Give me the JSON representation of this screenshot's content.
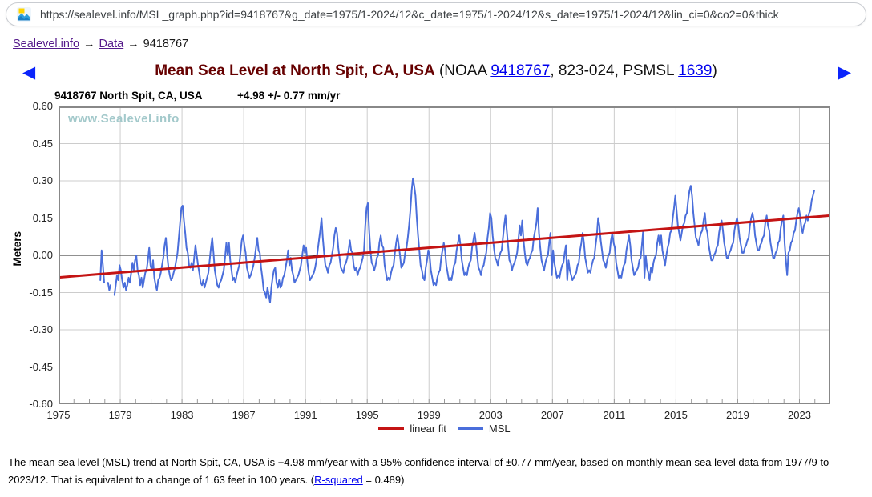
{
  "browser": {
    "url": "https://sealevel.info/MSL_graph.php?id=9418767&g_date=1975/1-2024/12&c_date=1975/1-2024/12&s_date=1975/1-2024/12&lin_ci=0&co2=0&thick",
    "favicon": "landscape-image-icon"
  },
  "breadcrumb": {
    "home": "Sealevel.info",
    "sep1": "→",
    "data": "Data",
    "sep2": "→",
    "station_id": "9418767"
  },
  "header": {
    "prev_arrow": "◀",
    "next_arrow": "▶",
    "title": "Mean Sea Level at North Spit, CA, USA",
    "paren_prefix": " (NOAA ",
    "noaa_link": "9418767",
    "paren_mid": ", 823-024, PSMSL ",
    "psmsl_link": "1639",
    "paren_suffix": ")"
  },
  "chart": {
    "station_label": "9418767 North Spit, CA, USA",
    "trend_label": "+4.98 +/- 0.77 mm/yr",
    "watermark": "www.Sealevel.info",
    "y_axis_label": "Meters"
  },
  "legend": {
    "linear_fit_label": "linear fit",
    "msl_label": "MSL"
  },
  "footer": {
    "text_before_link": "The mean sea level (MSL) trend at North Spit, CA, USA is +4.98 mm/year with a 95% confidence interval of ±0.77 mm/year, based on monthly mean sea level data from 1977/9 to 2023/12. That is equivalent to a change of 1.63 feet in 100 years. (",
    "link_label": "R-squared",
    "text_after_link": " = 0.489)"
  },
  "colors": {
    "msl_line": "#4a6edb",
    "linear_fit_line": "#c41414",
    "title_maroon": "#660000",
    "link_blue": "#0000EE",
    "visited_purple": "#551A8B",
    "grid": "#cccccc",
    "watermark": "#a3c9cb"
  },
  "chart_data": {
    "type": "line",
    "title": "Mean Sea Level at North Spit, CA, USA",
    "xlabel": "",
    "ylabel": "Meters",
    "xlim": [
      1975,
      2025
    ],
    "ylim": [
      -0.6,
      0.6
    ],
    "x_ticks": [
      1975,
      1979,
      1983,
      1987,
      1991,
      1995,
      1999,
      2003,
      2007,
      2011,
      2015,
      2019,
      2023
    ],
    "y_ticks": [
      0.6,
      0.45,
      0.3,
      0.15,
      0,
      -0.15,
      -0.3,
      -0.45,
      -0.6
    ],
    "grid": true,
    "legend_position": "bottom",
    "trend_mm_per_year": 4.98,
    "trend_ci_mm_per_year": 0.77,
    "r_squared": 0.489,
    "data_span": "1977/9 - 2023/12",
    "series": [
      {
        "name": "MSL",
        "kind": "monthly",
        "start_year": 1977,
        "start_month": 9,
        "values": [
          -0.1,
          0.02,
          -0.04,
          -0.11,
          null,
          null,
          -0.11,
          -0.14,
          -0.12,
          null,
          null,
          -0.16,
          -0.12,
          -0.08,
          -0.1,
          -0.04,
          -0.06,
          -0.1,
          -0.13,
          -0.11,
          -0.14,
          -0.12,
          -0.09,
          -0.11,
          -0.07,
          -0.03,
          -0.06,
          -0.02,
          0.0,
          -0.06,
          -0.08,
          -0.12,
          -0.09,
          -0.13,
          -0.1,
          -0.07,
          -0.06,
          -0.02,
          0.03,
          -0.04,
          -0.06,
          -0.02,
          -0.09,
          -0.12,
          -0.14,
          -0.1,
          -0.09,
          -0.07,
          -0.04,
          -0.01,
          0.04,
          0.07,
          0.0,
          -0.05,
          -0.08,
          -0.1,
          -0.09,
          -0.07,
          -0.05,
          -0.02,
          0.01,
          0.07,
          0.13,
          0.19,
          0.2,
          0.14,
          0.09,
          0.03,
          0.01,
          -0.04,
          -0.05,
          -0.03,
          -0.06,
          -0.01,
          0.04,
          0.0,
          -0.04,
          -0.07,
          -0.11,
          -0.12,
          -0.1,
          -0.13,
          -0.11,
          -0.09,
          -0.07,
          -0.02,
          0.03,
          0.07,
          0.01,
          -0.06,
          -0.09,
          -0.12,
          -0.13,
          -0.11,
          -0.1,
          -0.08,
          -0.06,
          -0.01,
          0.05,
          0.0,
          0.05,
          -0.02,
          -0.06,
          -0.1,
          -0.09,
          -0.11,
          -0.08,
          -0.06,
          -0.04,
          0.01,
          0.06,
          0.08,
          0.04,
          0.01,
          -0.05,
          -0.07,
          -0.09,
          -0.08,
          -0.06,
          -0.04,
          -0.01,
          0.03,
          0.07,
          0.02,
          0.01,
          -0.05,
          -0.09,
          -0.14,
          -0.15,
          -0.17,
          -0.13,
          -0.16,
          -0.19,
          -0.13,
          -0.09,
          -0.06,
          -0.05,
          -0.11,
          -0.13,
          -0.1,
          -0.13,
          -0.12,
          -0.09,
          -0.08,
          -0.05,
          -0.02,
          0.02,
          -0.04,
          -0.01,
          -0.06,
          -0.08,
          -0.11,
          -0.1,
          -0.09,
          -0.08,
          -0.06,
          -0.04,
          0.0,
          0.04,
          0.01,
          0.03,
          -0.03,
          -0.07,
          -0.1,
          -0.09,
          -0.08,
          -0.07,
          -0.05,
          -0.02,
          0.02,
          0.06,
          0.1,
          0.15,
          0.07,
          0.01,
          -0.04,
          -0.05,
          -0.07,
          -0.04,
          -0.03,
          0.0,
          0.03,
          0.08,
          0.11,
          0.09,
          0.03,
          -0.01,
          -0.05,
          -0.06,
          -0.07,
          -0.04,
          -0.03,
          -0.01,
          0.02,
          0.06,
          0.02,
          0.01,
          -0.04,
          -0.06,
          -0.05,
          -0.08,
          -0.06,
          -0.05,
          -0.03,
          -0.01,
          0.02,
          0.12,
          0.19,
          0.21,
          0.1,
          0.02,
          -0.03,
          -0.04,
          -0.06,
          -0.04,
          -0.01,
          0.0,
          0.05,
          0.08,
          0.04,
          0.03,
          -0.04,
          -0.07,
          -0.1,
          -0.09,
          -0.1,
          -0.07,
          -0.05,
          -0.04,
          0.01,
          0.05,
          0.08,
          0.04,
          0.0,
          -0.05,
          -0.04,
          -0.03,
          0.01,
          0.03,
          0.07,
          0.12,
          0.18,
          0.26,
          0.31,
          0.28,
          0.24,
          0.15,
          0.08,
          0.02,
          -0.04,
          -0.06,
          -0.09,
          -0.1,
          -0.05,
          -0.02,
          0.02,
          0.0,
          -0.06,
          -0.09,
          -0.12,
          -0.11,
          -0.12,
          -0.09,
          -0.07,
          -0.06,
          -0.01,
          0.02,
          0.05,
          0.02,
          -0.04,
          -0.07,
          -0.1,
          -0.09,
          -0.1,
          -0.07,
          -0.04,
          -0.03,
          0.02,
          0.05,
          0.08,
          0.04,
          -0.02,
          -0.05,
          -0.08,
          -0.07,
          -0.08,
          -0.05,
          -0.03,
          -0.02,
          0.03,
          0.06,
          0.09,
          0.05,
          0.0,
          -0.05,
          -0.06,
          -0.08,
          -0.05,
          -0.04,
          -0.01,
          0.01,
          0.07,
          0.11,
          0.17,
          0.15,
          0.08,
          0.03,
          -0.01,
          -0.02,
          -0.04,
          -0.01,
          0.01,
          0.02,
          0.07,
          0.12,
          0.16,
          0.1,
          0.04,
          -0.02,
          -0.03,
          -0.06,
          -0.04,
          -0.03,
          -0.01,
          0.01,
          0.06,
          0.12,
          0.08,
          0.14,
          0.06,
          0.01,
          -0.03,
          -0.04,
          -0.02,
          -0.01,
          0.01,
          0.02,
          0.07,
          0.1,
          0.13,
          0.19,
          0.09,
          0.03,
          -0.02,
          -0.04,
          -0.06,
          -0.03,
          -0.01,
          0.0,
          0.05,
          0.09,
          -0.08,
          0.02,
          -0.03,
          -0.06,
          -0.09,
          -0.08,
          -0.09,
          -0.06,
          -0.04,
          -0.03,
          0.01,
          0.04,
          -0.1,
          -0.02,
          -0.06,
          -0.08,
          -0.1,
          -0.09,
          -0.08,
          -0.07,
          -0.04,
          -0.03,
          0.02,
          0.05,
          0.09,
          0.05,
          -0.01,
          -0.04,
          -0.07,
          -0.06,
          -0.07,
          -0.04,
          -0.02,
          -0.01,
          0.04,
          0.08,
          0.15,
          0.12,
          0.06,
          0.02,
          -0.02,
          -0.03,
          -0.05,
          -0.02,
          0.0,
          0.01,
          0.06,
          0.09,
          0.05,
          0.03,
          -0.03,
          -0.06,
          -0.09,
          -0.08,
          -0.09,
          -0.06,
          -0.04,
          -0.03,
          0.02,
          0.05,
          0.08,
          0.04,
          -0.02,
          -0.05,
          -0.08,
          -0.07,
          -0.06,
          -0.05,
          -0.02,
          -0.01,
          0.04,
          0.1,
          -0.09,
          0.0,
          -0.05,
          -0.07,
          -0.1,
          -0.05,
          -0.07,
          -0.03,
          -0.01,
          0.0,
          0.05,
          0.08,
          0.04,
          0.08,
          0.02,
          -0.01,
          -0.04,
          0.0,
          0.03,
          0.05,
          0.09,
          0.1,
          0.15,
          0.19,
          0.24,
          0.18,
          0.12,
          0.09,
          0.06,
          0.09,
          0.12,
          0.13,
          0.16,
          0.17,
          0.22,
          0.26,
          0.28,
          0.24,
          0.17,
          0.12,
          0.07,
          0.06,
          0.04,
          0.07,
          0.09,
          0.1,
          0.14,
          0.17,
          0.11,
          0.09,
          0.04,
          0.01,
          -0.02,
          -0.02,
          0.0,
          0.01,
          0.03,
          0.04,
          0.09,
          0.12,
          0.14,
          0.1,
          0.05,
          0.02,
          -0.01,
          -0.01,
          0.01,
          0.02,
          0.04,
          0.05,
          0.1,
          0.13,
          0.15,
          0.12,
          0.07,
          0.04,
          0.01,
          0.01,
          0.03,
          0.04,
          0.06,
          0.07,
          0.12,
          0.15,
          0.17,
          0.14,
          0.08,
          0.05,
          0.02,
          0.02,
          0.04,
          0.05,
          0.07,
          0.08,
          0.13,
          0.16,
          0.12,
          0.1,
          0.05,
          0.02,
          -0.01,
          -0.01,
          0.01,
          0.02,
          0.05,
          0.06,
          0.11,
          0.14,
          0.16,
          0.05,
          -0.02,
          -0.08,
          0.01,
          0.02,
          0.05,
          0.06,
          0.09,
          0.1,
          0.14,
          0.17,
          0.19,
          0.16,
          0.11,
          0.09,
          0.12,
          0.13,
          0.16,
          0.14,
          0.17,
          0.18,
          0.22,
          0.24,
          0.26
        ]
      },
      {
        "name": "linear fit",
        "kind": "line",
        "x": [
          1975,
          2025
        ],
        "y": [
          -0.089,
          0.16
        ]
      }
    ]
  }
}
